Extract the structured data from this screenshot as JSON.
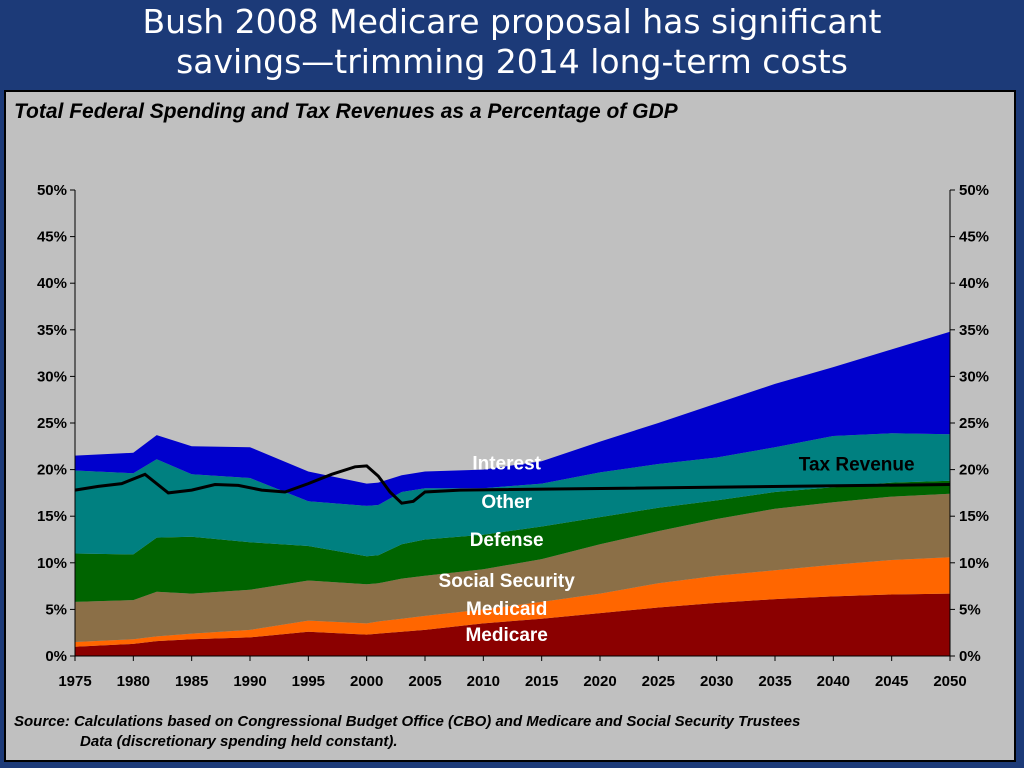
{
  "slide": {
    "title_line1": "Bush 2008 Medicare proposal has significant",
    "title_line2": "savings—trimming 2014 long-term costs"
  },
  "source": {
    "line1": "Source: Calculations based on Congressional Budget Office (CBO) and Medicare and Social Security Trustees",
    "line2": "Data (discretionary spending held constant)."
  },
  "chart_data": {
    "type": "area",
    "title": "Total Federal Spending and Tax Revenues as a Percentage of GDP",
    "x": [
      1975,
      1980,
      1982,
      1985,
      1990,
      1995,
      2000,
      2001,
      2003,
      2005,
      2010,
      2015,
      2020,
      2025,
      2030,
      2035,
      2040,
      2045,
      2050
    ],
    "xticks": [
      1975,
      1980,
      1985,
      1990,
      1995,
      2000,
      2005,
      2010,
      2015,
      2020,
      2025,
      2030,
      2035,
      2040,
      2045,
      2050
    ],
    "yticks": [
      "0%",
      "5%",
      "10%",
      "15%",
      "20%",
      "25%",
      "30%",
      "35%",
      "40%",
      "45%",
      "50%"
    ],
    "ylim": [
      0,
      50
    ],
    "stacked": true,
    "series": [
      {
        "name": "Medicare",
        "color": "#8b0000",
        "values": [
          1.0,
          1.3,
          1.6,
          1.8,
          2.0,
          2.6,
          2.3,
          2.4,
          2.6,
          2.8,
          3.5,
          4.0,
          4.6,
          5.2,
          5.7,
          6.1,
          6.4,
          6.6,
          6.7
        ]
      },
      {
        "name": "Medicaid",
        "color": "#ff6600",
        "values": [
          0.5,
          0.5,
          0.5,
          0.6,
          0.8,
          1.2,
          1.2,
          1.3,
          1.4,
          1.5,
          1.5,
          1.8,
          2.1,
          2.6,
          2.9,
          3.1,
          3.4,
          3.7,
          3.9
        ]
      },
      {
        "name": "Social Security",
        "color": "#8b6f47",
        "values": [
          4.3,
          4.2,
          4.8,
          4.3,
          4.3,
          4.3,
          4.2,
          4.1,
          4.3,
          4.3,
          4.3,
          4.6,
          5.3,
          5.6,
          6.1,
          6.6,
          6.7,
          6.8,
          6.8
        ]
      },
      {
        "name": "Defense",
        "color": "#006400",
        "values": [
          5.2,
          4.9,
          5.8,
          6.1,
          5.1,
          3.7,
          3.0,
          3.0,
          3.7,
          3.9,
          3.7,
          3.5,
          2.9,
          2.5,
          2.0,
          1.8,
          1.6,
          1.5,
          1.4
        ]
      },
      {
        "name": "Other",
        "color": "#008080",
        "values": [
          8.9,
          8.7,
          8.4,
          6.7,
          6.9,
          4.8,
          5.4,
          5.4,
          5.6,
          5.5,
          5.0,
          4.6,
          4.8,
          4.7,
          4.6,
          4.8,
          5.5,
          5.3,
          5.0
        ]
      },
      {
        "name": "Interest",
        "color": "#0000cd",
        "values": [
          1.6,
          2.2,
          2.6,
          3.0,
          3.3,
          3.2,
          2.4,
          2.4,
          1.8,
          1.8,
          2.0,
          2.4,
          3.3,
          4.4,
          5.8,
          6.8,
          7.4,
          9.0,
          11.0
        ]
      }
    ],
    "line": {
      "name": "Tax Revenue",
      "color": "#000000",
      "x": [
        1975,
        1977,
        1979,
        1981,
        1983,
        1985,
        1987,
        1989,
        1991,
        1993,
        1995,
        1997,
        1999,
        2000,
        2001,
        2002,
        2003,
        2004,
        2005,
        2008,
        2050
      ],
      "values": [
        17.8,
        18.2,
        18.5,
        19.5,
        17.5,
        17.8,
        18.4,
        18.3,
        17.8,
        17.6,
        18.5,
        19.5,
        20.3,
        20.4,
        19.3,
        17.6,
        16.4,
        16.6,
        17.6,
        17.8,
        18.4
      ]
    }
  }
}
